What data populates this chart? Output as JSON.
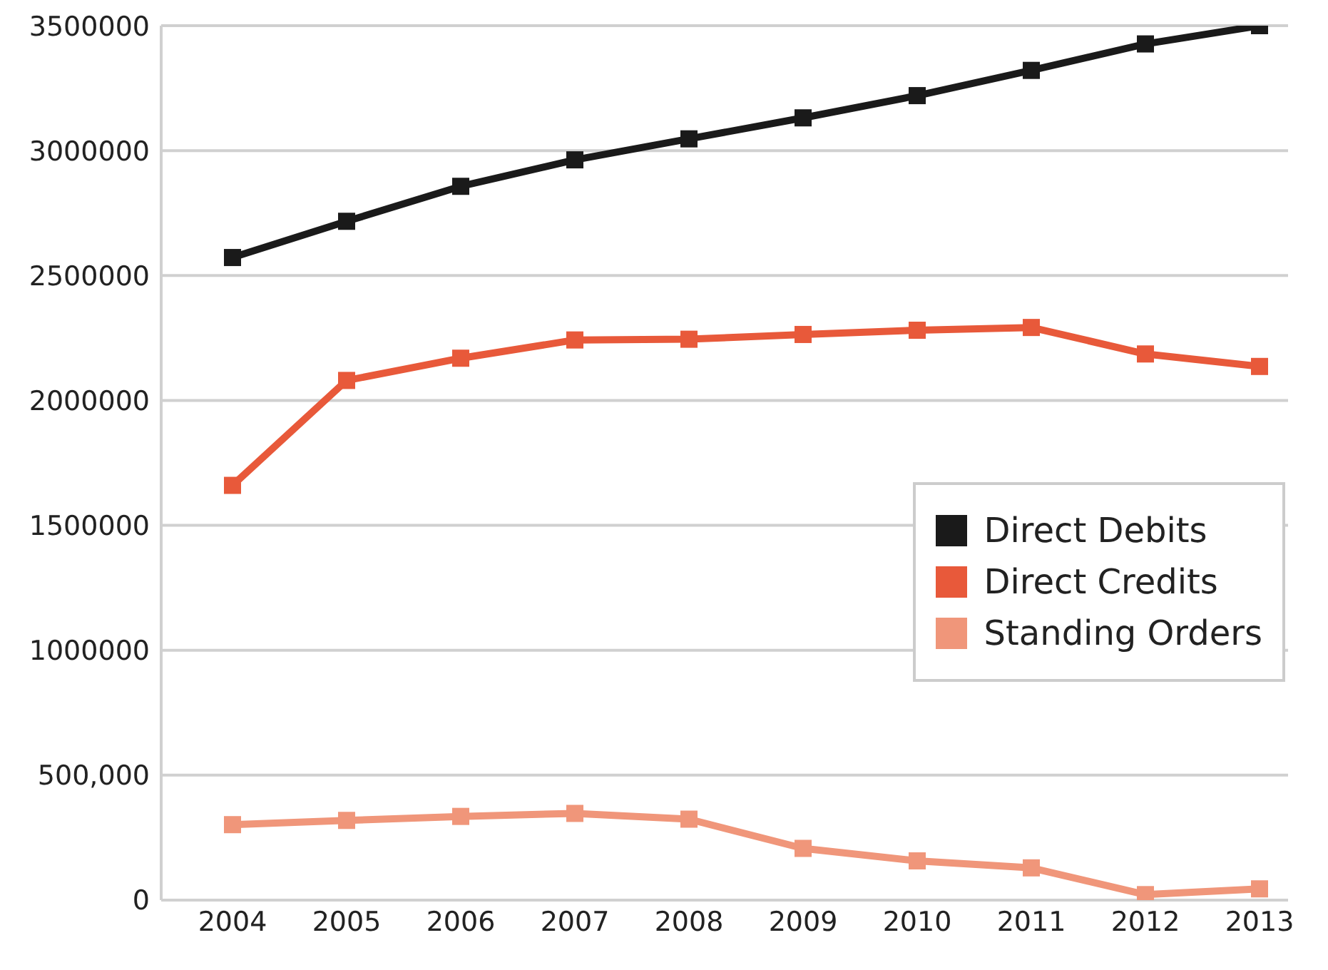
{
  "chart_data": {
    "type": "line",
    "categories": [
      "2004",
      "2005",
      "2006",
      "2007",
      "2008",
      "2009",
      "2010",
      "2011",
      "2012",
      "2013"
    ],
    "series": [
      {
        "name": "Direct Debits",
        "color": "#1a1a1a",
        "values": [
          2572000,
          2717000,
          2857000,
          2963000,
          3047000,
          3131000,
          3220000,
          3321000,
          3427000,
          3500000
        ]
      },
      {
        "name": "Direct Credits",
        "color": "#e8593a",
        "values": [
          1660000,
          2080000,
          2169000,
          2242000,
          2245000,
          2264000,
          2281000,
          2292000,
          2186000,
          2136000
        ]
      },
      {
        "name": "Standing Orders",
        "color": "#f0967a",
        "values": [
          302000,
          319000,
          335000,
          347000,
          324000,
          207000,
          157000,
          129000,
          22000,
          45000
        ]
      }
    ],
    "ylim": [
      0,
      3500000
    ],
    "yticks": [
      0,
      {
        "value": 500000,
        "label": "500,000"
      },
      1000000,
      1500000,
      2000000,
      2500000,
      3000000,
      3500000
    ],
    "grid": "y",
    "legend": "right",
    "marker": "square",
    "line_style": "solid"
  }
}
